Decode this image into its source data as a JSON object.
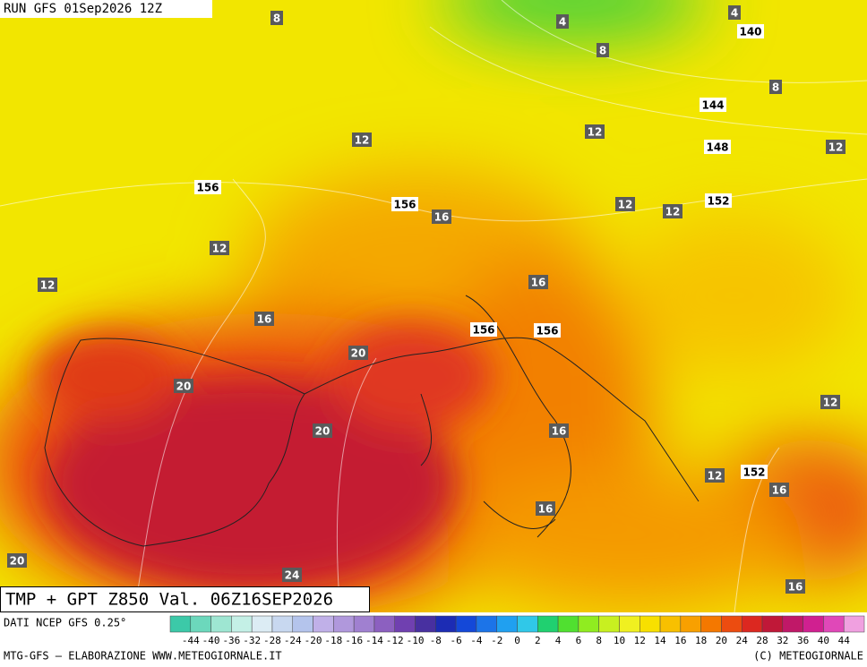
{
  "header": {
    "run": "RUN GFS 01Sep2026 12Z"
  },
  "title": "TMP + GPT Z850 Val. 06Z16SEP2026",
  "footer": {
    "source": "DATI NCEP GFS 0.25°",
    "credit": "MTG-GFS – ELABORAZIONE WWW.METEOGIORNALE.IT",
    "copyright": "(C) METEOGIORNALE"
  },
  "legend": {
    "labels": [
      -44,
      -40,
      -36,
      -32,
      -28,
      -24,
      -20,
      -18,
      -16,
      -14,
      -12,
      -10,
      -8,
      -6,
      -4,
      -2,
      0,
      2,
      4,
      6,
      8,
      10,
      12,
      14,
      16,
      18,
      20,
      24,
      28,
      32,
      36,
      40,
      44
    ],
    "colors": [
      "#3cc9a8",
      "#6cd8bc",
      "#9ee6d2",
      "#c4f0e6",
      "#dcecf4",
      "#c8d8f0",
      "#b4c4ec",
      "#c0b0e8",
      "#b098dc",
      "#a080d0",
      "#8c60c0",
      "#7040b0",
      "#4830a0",
      "#1c2cb4",
      "#1448d8",
      "#1c74e8",
      "#20a0f0",
      "#30c8e8",
      "#20d070",
      "#50e030",
      "#90ec20",
      "#c8f020",
      "#f0f020",
      "#f8e000",
      "#f8c000",
      "#f8a000",
      "#f47800",
      "#ec4c10",
      "#dc2820",
      "#c01838",
      "#c01868",
      "#d02090",
      "#e048b8",
      "#f0a0e0"
    ]
  },
  "map": {
    "labels": [
      {
        "text": "8",
        "kind": "temp"
      },
      {
        "text": "4",
        "kind": "temp"
      },
      {
        "text": "4",
        "kind": "temp"
      },
      {
        "text": "140",
        "kind": "gpt"
      },
      {
        "text": "8",
        "kind": "temp"
      },
      {
        "text": "8",
        "kind": "temp"
      },
      {
        "text": "144",
        "kind": "gpt"
      },
      {
        "text": "12",
        "kind": "temp"
      },
      {
        "text": "12",
        "kind": "temp"
      },
      {
        "text": "148",
        "kind": "gpt"
      },
      {
        "text": "12",
        "kind": "temp"
      },
      {
        "text": "156",
        "kind": "gpt"
      },
      {
        "text": "156",
        "kind": "gpt"
      },
      {
        "text": "16",
        "kind": "temp"
      },
      {
        "text": "12",
        "kind": "temp"
      },
      {
        "text": "12",
        "kind": "temp"
      },
      {
        "text": "152",
        "kind": "gpt"
      },
      {
        "text": "12",
        "kind": "temp"
      },
      {
        "text": "12",
        "kind": "temp"
      },
      {
        "text": "16",
        "kind": "temp"
      },
      {
        "text": "16",
        "kind": "temp"
      },
      {
        "text": "156",
        "kind": "gpt"
      },
      {
        "text": "156",
        "kind": "gpt"
      },
      {
        "text": "20",
        "kind": "temp"
      },
      {
        "text": "20",
        "kind": "temp"
      },
      {
        "text": "12",
        "kind": "temp"
      },
      {
        "text": "20",
        "kind": "temp"
      },
      {
        "text": "16",
        "kind": "temp"
      },
      {
        "text": "12",
        "kind": "temp"
      },
      {
        "text": "152",
        "kind": "gpt"
      },
      {
        "text": "16",
        "kind": "temp"
      },
      {
        "text": "16",
        "kind": "temp"
      },
      {
        "text": "20",
        "kind": "temp"
      },
      {
        "text": "24",
        "kind": "temp"
      },
      {
        "text": "16",
        "kind": "temp"
      }
    ]
  }
}
